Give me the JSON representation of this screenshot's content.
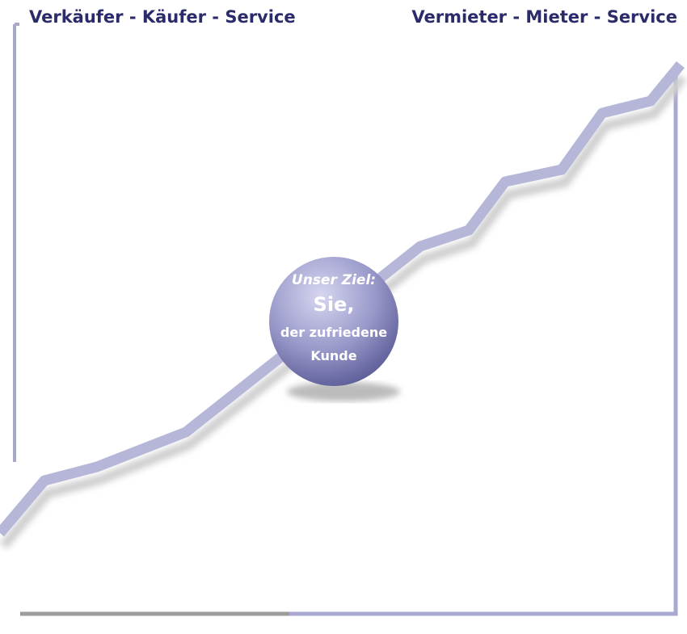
{
  "header": {
    "left_title": "Verkäufer - Käufer - Service",
    "right_title": "Vermieter - Mieter - Service"
  },
  "badge": {
    "line1": "Unser Ziel:",
    "line2": "Sie,",
    "line3": "der zufriedene",
    "line4": "Kunde"
  }
}
